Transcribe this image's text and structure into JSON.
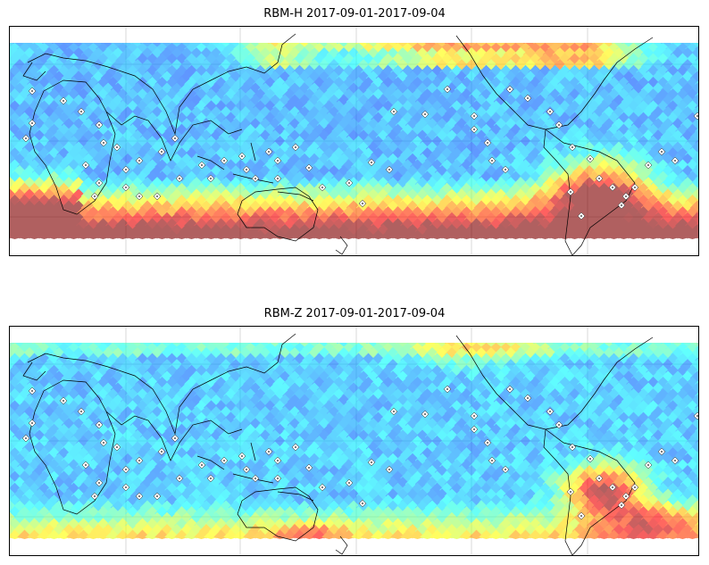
{
  "panels": [
    {
      "title": "RBM-H 2017-09-01-2017-09-04",
      "field": "H",
      "colormap": "jet",
      "land_outline_color": "#000000",
      "graticule_color": "#cfcfcf",
      "station_marker": "white-station-icon"
    },
    {
      "title": "RBM-Z 2017-09-01-2017-09-04",
      "field": "Z",
      "colormap": "jet",
      "land_outline_color": "#000000",
      "graticule_color": "#cfcfcf",
      "station_marker": "white-station-icon"
    }
  ]
}
